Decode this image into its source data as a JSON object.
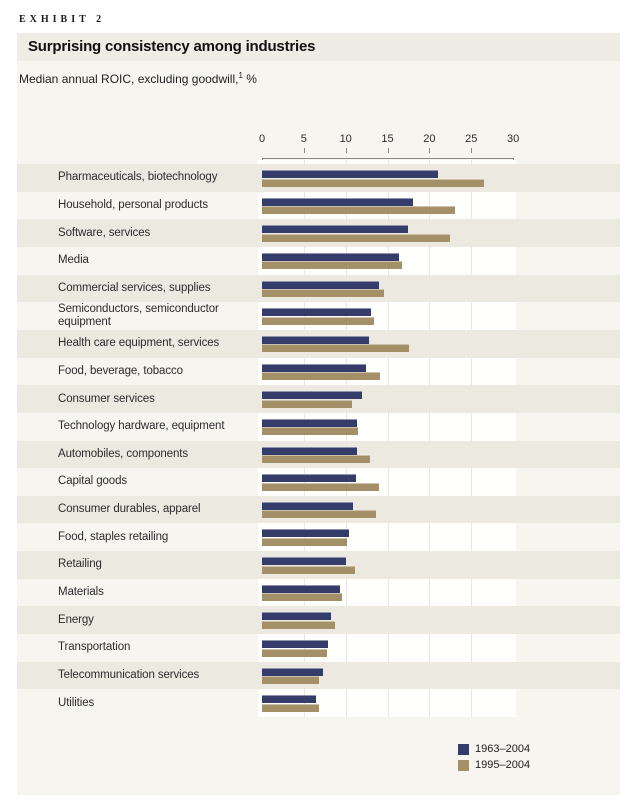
{
  "exhibit": {
    "label": "EXHIBIT 2"
  },
  "header": {
    "title": "Surprising consistency among industries"
  },
  "subtitle": {
    "text": "Median annual ROIC, excluding goodwill,",
    "footnote_marker": "1",
    "suffix": " %"
  },
  "chart_data": {
    "type": "bar",
    "orientation": "horizontal",
    "title": "Surprising consistency among industries",
    "xlabel": "Median annual ROIC, excluding goodwill, %",
    "ylabel": "",
    "grid": true,
    "legend_position": "bottom-right",
    "axis": {
      "min": 0,
      "max": 30,
      "ticks": [
        0,
        5,
        10,
        15,
        20,
        25,
        30
      ]
    },
    "categories": [
      "Pharmaceuticals, biotechnology",
      "Household, personal products",
      "Software, services",
      "Media",
      "Commercial services, supplies",
      "Semiconductors, semiconductor equipment",
      "Health care equipment, services",
      "Food, beverage, tobacco",
      "Consumer services",
      "Technology hardware, equipment",
      "Automobiles, components",
      "Capital goods",
      "Consumer durables, apparel",
      "Food, staples retailing",
      "Retailing",
      "Materials",
      "Energy",
      "Transportation",
      "Telecommunication services",
      "Utilities"
    ],
    "series": [
      {
        "name": "1963–2004",
        "color": "#353c69",
        "values": [
          21,
          18,
          17.5,
          16.4,
          14,
          13,
          12.8,
          12.4,
          12,
          11.3,
          11.3,
          11.2,
          10.9,
          10.4,
          10,
          9.3,
          8.3,
          7.9,
          7.3,
          6.5
        ]
      },
      {
        "name": "1995–2004",
        "color": "#a39069",
        "values": [
          26.5,
          23,
          22.5,
          16.7,
          14.6,
          13.4,
          17.6,
          14.1,
          10.7,
          11.5,
          12.9,
          14,
          13.6,
          10.2,
          11.1,
          9.5,
          8.7,
          7.8,
          6.8,
          6.8
        ]
      }
    ]
  },
  "colors": {
    "panel_bg": "#f7f5f0",
    "stripe_bg": "#ece9e1",
    "title_band_bg": "#efece5",
    "plot_bg": "#fffffe",
    "gridline": "#e9e6de",
    "axis": "#8a887f",
    "series_1963": "#353c69",
    "series_1995": "#a39069"
  }
}
